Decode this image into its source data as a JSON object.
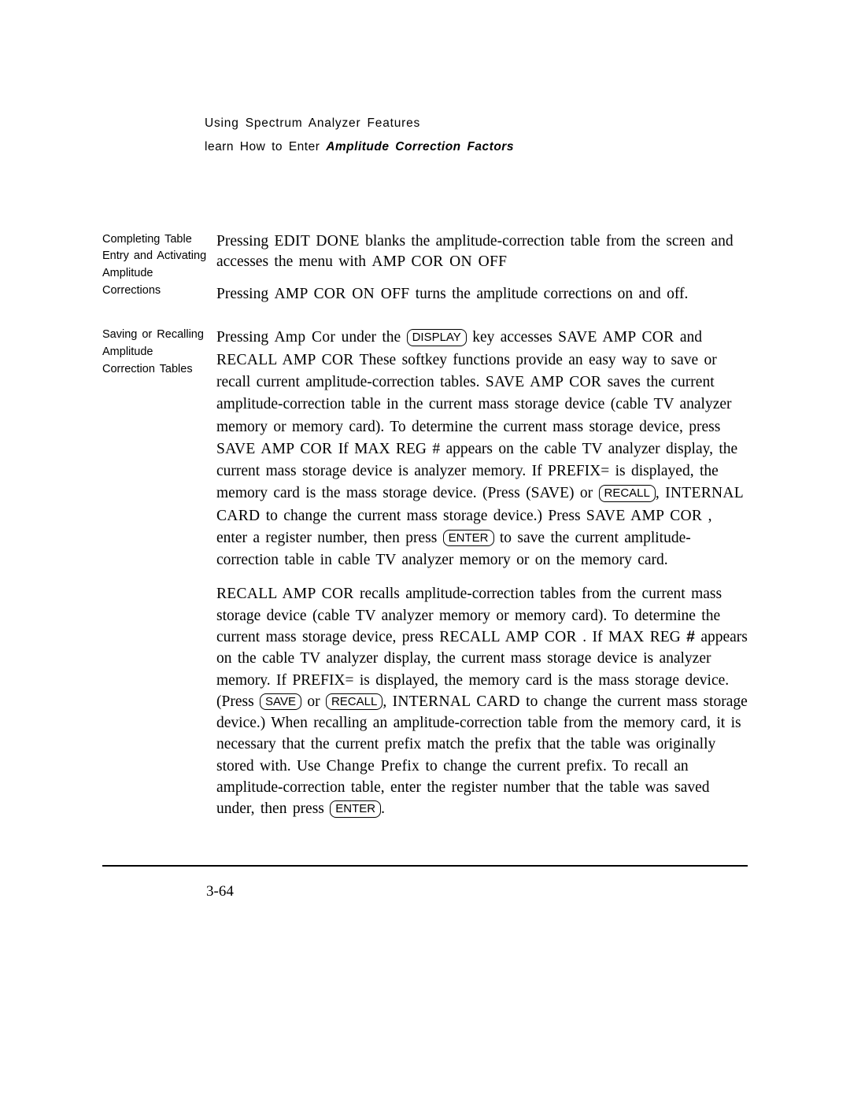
{
  "header": {
    "line1": "Using Spectrum Analyzer Features",
    "line2_prefix": "learn How to Enter ",
    "line2_bold": "Amplitude Correction Factors"
  },
  "section1": {
    "left": "Completing Table Entry and Activating Amplitude Corrections",
    "p1_a": "Pressing ",
    "p1_b": "EDIT DONE",
    "p1_c": " blanks the amplitude-correction table from the screen and accesses the menu with ",
    "p1_d": "AMP COR ON OFF",
    "p2_a": "Pressing ",
    "p2_b": "AMP COR ON OFF",
    "p2_c": " turns the amplitude corrections on and off."
  },
  "section2": {
    "left": "Saving or Recalling Amplitude Correction Tables",
    "p1_a": "Pressing ",
    "p1_b": "Amp Cor",
    "p1_c": " under the ",
    "p1_key1": "DISPLAY",
    "p1_d": " key accesses ",
    "p1_e": "SAVE AMP COR",
    "p1_f": " and ",
    "p1_g": "RECALL AMP COR",
    "p1_h": " These softkey functions provide an easy way to save or recall current amplitude-correction tables. ",
    "p1_i": "SAVE AMP COR",
    "p1_j": " saves the current amplitude-correction table in the current mass storage device (cable TV analyzer memory or memory card). To determine the current mass storage device, press ",
    "p1_k": "SAVE AMP COR",
    "p1_l": " If MAX REG # appears on the cable TV analyzer display, the current mass storage device is analyzer memory. If PREFIX= is displayed, the memory card is the mass storage device. (Press (SAVE) or ",
    "p1_key2": "RECALL",
    "p1_m": ", ",
    "p1_n": "INTERNAL CARD",
    "p1_o": " to change the current mass storage device.) Press ",
    "p1_p": "SAVE AMP COR",
    "p1_q": " , enter a register number, then press ",
    "p1_key3": "ENTER",
    "p1_r": " to save the current amplitude-correction table in cable TV analyzer memory or on the memory card.",
    "p2_a": "RECALL AMP COR",
    "p2_b": " recalls amplitude-correction tables from the current mass storage device (cable TV analyzer memory or memory card). To determine the current mass storage device, press ",
    "p2_c": "RECALL AMP COR",
    "p2_d": " . If MAX REG ",
    "p2_hash": "#",
    "p2_e": " appears on the cable TV analyzer display, the current mass storage device is analyzer memory. If PREFIX= is displayed, the memory card is the mass storage device. (Press ",
    "p2_key1": "SAVE",
    "p2_f": " or ",
    "p2_key2": "RECALL",
    "p2_g": ", ",
    "p2_h": "INTERNAL CARD",
    "p2_i": " to change the current mass storage device.) When recalling an amplitude-correction table from the memory card, it is necessary that the current prefix match the prefix that the table was originally stored with. Use ",
    "p2_j": "Change Prefix",
    "p2_k": " to change the current prefix. To recall an amplitude-correction table, enter the register number that the table was saved under, then press ",
    "p2_key3": "ENTER",
    "p2_l": "."
  },
  "footer": {
    "pagenum": "3-64"
  }
}
